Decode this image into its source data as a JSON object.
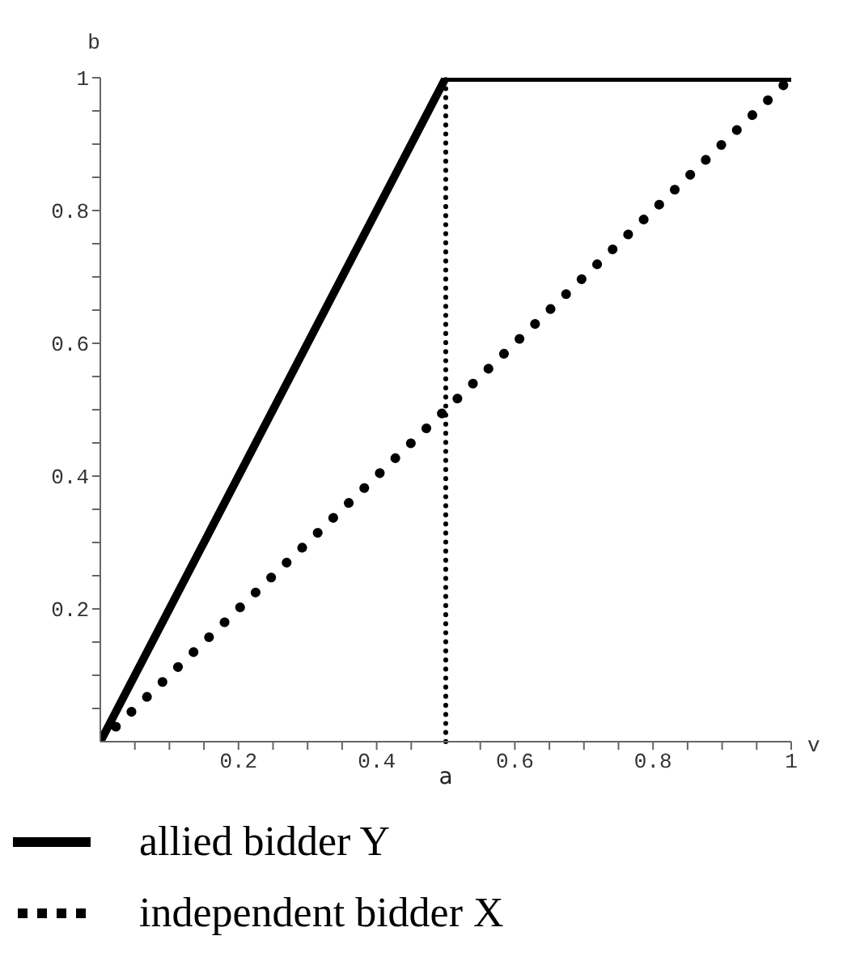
{
  "chart_data": {
    "type": "line",
    "xlabel": "v",
    "ylabel": "b",
    "xlim": [
      0,
      1
    ],
    "ylim": [
      0,
      1
    ],
    "xticks": [
      {
        "value": 0.05,
        "label": null
      },
      {
        "value": 0.1,
        "label": null
      },
      {
        "value": 0.15,
        "label": null
      },
      0.2,
      {
        "value": 0.25,
        "label": null
      },
      {
        "value": 0.3,
        "label": null
      },
      {
        "value": 0.35,
        "label": null
      },
      0.4,
      {
        "value": 0.45,
        "label": null
      },
      {
        "value": 0.55,
        "label": null
      },
      0.6,
      {
        "value": 0.65,
        "label": null
      },
      {
        "value": 0.7,
        "label": null
      },
      {
        "value": 0.75,
        "label": null
      },
      0.8,
      {
        "value": 0.85,
        "label": null
      },
      {
        "value": 0.9,
        "label": null
      },
      {
        "value": 0.95,
        "label": null
      },
      1
    ],
    "yticks": [
      {
        "value": 0.05,
        "label": null
      },
      {
        "value": 0.1,
        "label": null
      },
      {
        "value": 0.15,
        "label": null
      },
      0.2,
      {
        "value": 0.25,
        "label": null
      },
      {
        "value": 0.3,
        "label": null
      },
      {
        "value": 0.35,
        "label": null
      },
      0.4,
      {
        "value": 0.45,
        "label": null
      },
      {
        "value": 0.5,
        "label": null
      },
      {
        "value": 0.55,
        "label": null
      },
      0.6,
      {
        "value": 0.65,
        "label": null
      },
      {
        "value": 0.7,
        "label": null
      },
      {
        "value": 0.75,
        "label": null
      },
      0.8,
      {
        "value": 0.85,
        "label": null
      },
      {
        "value": 0.9,
        "label": null
      },
      {
        "value": 0.95,
        "label": null
      },
      1
    ],
    "series": [
      {
        "name": "allied bidder Y",
        "color": "#000000",
        "line_style": "solid",
        "x": [
          0,
          0.5,
          1
        ],
        "values": [
          0,
          1,
          1
        ]
      },
      {
        "name": "independent bidder X",
        "color": "#000000",
        "line_style": "dotted",
        "x": [
          0,
          1
        ],
        "values": [
          0,
          1
        ]
      }
    ],
    "ref_lines": [
      {
        "axis": "x",
        "value": 0.5,
        "label": "a",
        "color": "#000000",
        "line_style": "dotted"
      }
    ],
    "grid": false,
    "marker": "none",
    "legend": "bottom"
  }
}
